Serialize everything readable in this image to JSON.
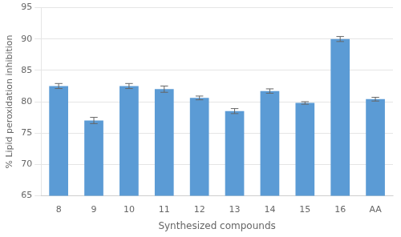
{
  "chart_data": {
    "type": "bar",
    "categories": [
      "8",
      "9",
      "10",
      "11",
      "12",
      "13",
      "14",
      "15",
      "16",
      "AA"
    ],
    "values": [
      82.5,
      77.0,
      82.5,
      82.0,
      80.6,
      78.5,
      81.7,
      79.8,
      90.0,
      80.4
    ],
    "errors": [
      0.4,
      0.5,
      0.4,
      0.5,
      0.3,
      0.4,
      0.35,
      0.2,
      0.4,
      0.3
    ],
    "color": "#5b9bd5",
    "xlabel": "Synthesized compounds",
    "ylabel": "% Lipid peroxidation inhibition",
    "ylim": [
      65,
      95
    ],
    "yticks": [
      65,
      70,
      75,
      80,
      85,
      90,
      95
    ],
    "grid": true
  }
}
